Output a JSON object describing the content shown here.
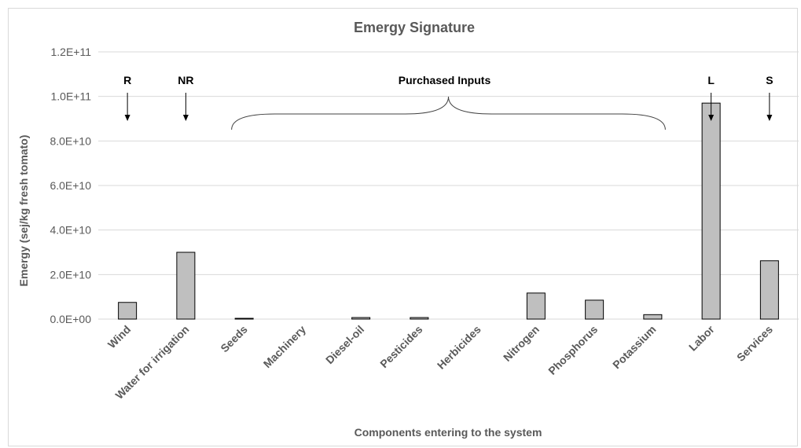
{
  "chart_data": {
    "type": "bar",
    "title": "Emergy Signature",
    "xlabel": "Components entering to the system",
    "ylabel": "Emergy (sej/kg fresh tomato)",
    "ylim": [
      0,
      120000000000
    ],
    "yticks": [
      0,
      20000000000,
      40000000000,
      60000000000,
      80000000000,
      100000000000,
      120000000000
    ],
    "ytick_labels": [
      "0.0E+00",
      "2.0E+10",
      "4.0E+10",
      "6.0E+10",
      "8.0E+10",
      "1.0E+11",
      "1.2E+11"
    ],
    "grid": true,
    "legend": "none",
    "categories": [
      "Wind",
      "Water for irrigation",
      "Seeds",
      "Machinery",
      "Diesel-oil",
      "Pesticides",
      "Herbicides",
      "Nitrogen",
      "Phosphorus",
      "Potassium",
      "Labor",
      "Services"
    ],
    "values": [
      7500000000,
      30000000000,
      300000000,
      0,
      700000000,
      700000000,
      0,
      11700000000,
      8500000000,
      2000000000,
      97000000000,
      26200000000
    ],
    "annotations": [
      {
        "text": "R",
        "category": "Wind",
        "kind": "arrow"
      },
      {
        "text": "NR",
        "category": "Water for irrigation",
        "kind": "arrow"
      },
      {
        "text": "Purchased Inputs",
        "from": "Seeds",
        "to": "Potassium",
        "kind": "brace"
      },
      {
        "text": "L",
        "category": "Labor",
        "kind": "arrow"
      },
      {
        "text": "S",
        "category": "Services",
        "kind": "arrow"
      }
    ],
    "colors": {
      "bar_fill": "#bfbfbf",
      "bar_stroke": "#000000",
      "grid": "#d9d9d9",
      "text": "#595959"
    }
  }
}
